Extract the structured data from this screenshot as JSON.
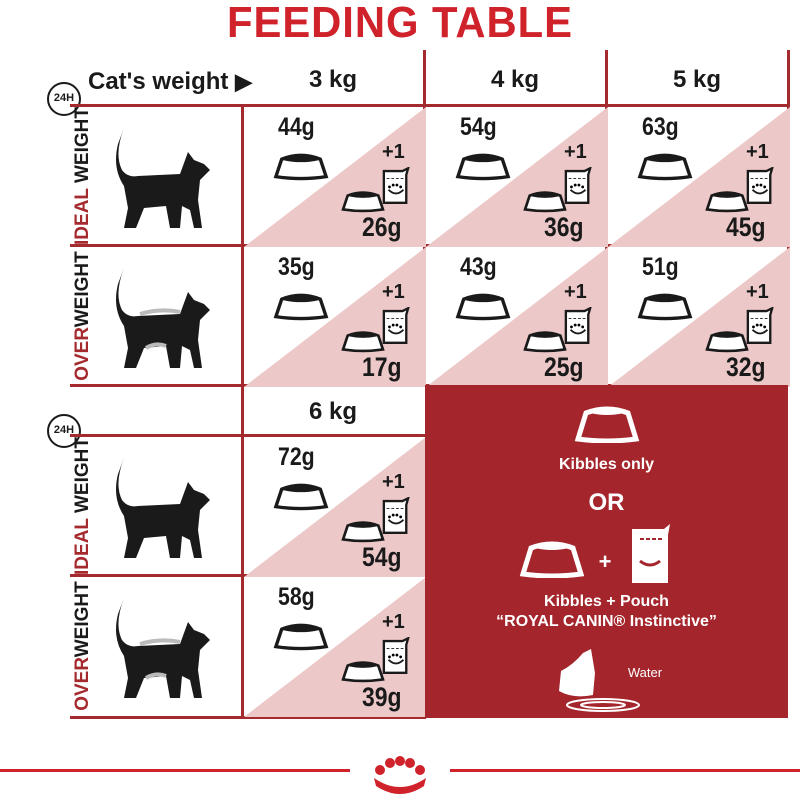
{
  "title": "FEEDING TABLE",
  "header": {
    "label": "Cat's weight",
    "weights_top": [
      "3 kg",
      "4 kg",
      "5 kg"
    ],
    "weight_bottom": "6 kg",
    "clock": "24H"
  },
  "row_labels": {
    "ideal_a": "IDEAL",
    "ideal_b": " WEIGHT",
    "over_a": "OVER",
    "over_b": "WEIGHT"
  },
  "table_top": {
    "ideal": [
      {
        "kibbles": "44g",
        "plus": "+1",
        "with_pouch": "26g"
      },
      {
        "kibbles": "54g",
        "plus": "+1",
        "with_pouch": "36g"
      },
      {
        "kibbles": "63g",
        "plus": "+1",
        "with_pouch": "45g"
      }
    ],
    "over": [
      {
        "kibbles": "35g",
        "plus": "+1",
        "with_pouch": "17g"
      },
      {
        "kibbles": "43g",
        "plus": "+1",
        "with_pouch": "25g"
      },
      {
        "kibbles": "51g",
        "plus": "+1",
        "with_pouch": "32g"
      }
    ]
  },
  "table_bottom": {
    "ideal": {
      "kibbles": "72g",
      "plus": "+1",
      "with_pouch": "54g"
    },
    "over": {
      "kibbles": "58g",
      "plus": "+1",
      "with_pouch": "39g"
    }
  },
  "legend": {
    "kibbles_only": "Kibbles only",
    "or": "OR",
    "plus": "+",
    "kibbles_pouch": "Kibbles + Pouch",
    "product": "“ROYAL CANIN® Instinctive”",
    "water": "Water"
  },
  "colors": {
    "brand_red": "#a4262c",
    "title_red": "#d0222b",
    "pink": "#ecc8c8"
  }
}
